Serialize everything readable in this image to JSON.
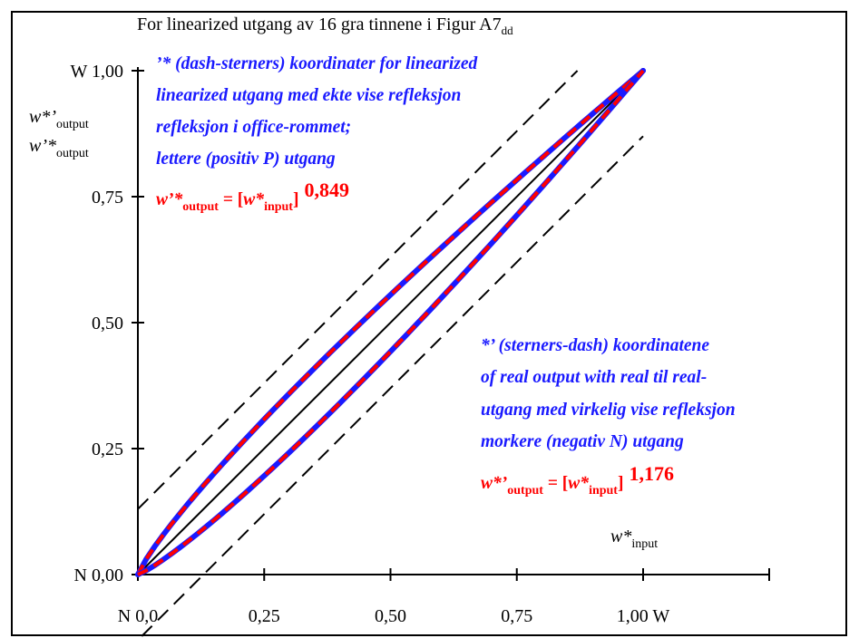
{
  "chart_data": {
    "type": "line",
    "title": "For linearized utgang av 16 gra tinnene i Figur A7",
    "title_sub": "dd",
    "ylabel_lines": [
      {
        "base": "w*’",
        "sub": "output"
      },
      {
        "base": "w’*",
        "sub": "output"
      }
    ],
    "xlabel": {
      "base": "w*",
      "sub": "input"
    },
    "xlim": [
      0,
      1.25
    ],
    "ylim": [
      0,
      1.0
    ],
    "x_ticks": [
      {
        "v": 0.0,
        "label": "N  0,0"
      },
      {
        "v": 0.25,
        "label": "0,25"
      },
      {
        "v": 0.5,
        "label": "0,50"
      },
      {
        "v": 0.75,
        "label": "0,75"
      },
      {
        "v": 1.0,
        "label": "1,00  W"
      }
    ],
    "y_ticks": [
      {
        "v": 0.0,
        "label": "N 0,00"
      },
      {
        "v": 0.25,
        "label": "0,25"
      },
      {
        "v": 0.5,
        "label": "0,50"
      },
      {
        "v": 0.75,
        "label": "0,75"
      },
      {
        "v": 1.0,
        "label": "W 1,00"
      }
    ],
    "series": [
      {
        "name": "w’*output = [w*input] 0,849",
        "exponent": 0.849,
        "color": "#ff0000",
        "underlay": "#1a1aff"
      },
      {
        "name": "w*’output = [w*input] 1,176",
        "exponent": 1.176,
        "color": "#ff0000",
        "underlay": "#1a1aff"
      }
    ],
    "reference_lines": [
      {
        "kind": "identity",
        "offset": 0,
        "style": "solid"
      },
      {
        "kind": "parallel",
        "offset": 0.13,
        "style": "dashed"
      },
      {
        "kind": "parallel",
        "offset": -0.13,
        "style": "dashed"
      }
    ],
    "annotations": {
      "top_block": [
        "’* (dash-sterners) koordinater for linearized",
        "linearized utgang med ekte vise refleksjon",
        "refleksjon i office-rommet;",
        "lettere (positiv P) utgang"
      ],
      "top_formula": {
        "lhs": "w’*",
        "lhs_sub": "output",
        "eq": " = [",
        "inner": "w*",
        "inner_sub": "input",
        "close": "]",
        "exp": "0,849"
      },
      "bottom_block": [
        "*’ (sterners-dash) koordinatene",
        "of real output with real til real-",
        "utgang med virkelig vise refleksjon",
        "morkere (negativ N) utgang"
      ],
      "bottom_formula": {
        "lhs": "w*’",
        "lhs_sub": "output",
        "eq": " = [",
        "inner": "w*",
        "inner_sub": "input",
        "close": "]",
        "exp": "1,176"
      }
    }
  }
}
